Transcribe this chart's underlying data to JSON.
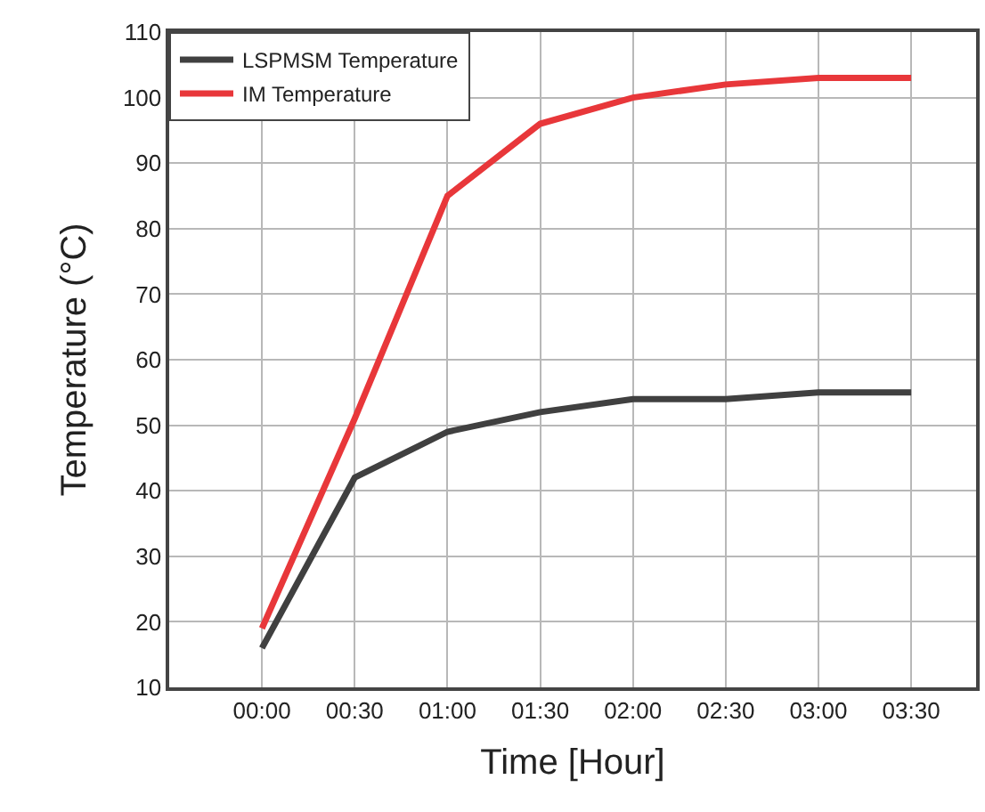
{
  "chart_data": {
    "type": "line",
    "xlabel": "Time [Hour]",
    "ylabel": "Temperature (°C)",
    "x": [
      0,
      0.5,
      1,
      1.5,
      2,
      2.5,
      3,
      3.5
    ],
    "series": [
      {
        "name": "LSPMSM Temperature",
        "color": "#404040",
        "values": [
          16,
          42,
          49,
          52,
          54,
          54,
          55,
          55
        ]
      },
      {
        "name": "IM Temperature",
        "color": "#e8373a",
        "values": [
          19,
          51,
          85,
          96,
          100,
          102,
          103,
          103
        ]
      }
    ],
    "xlim": [
      -0.5,
      3.85
    ],
    "xticks": [
      {
        "value": -0.5,
        "label": null
      },
      {
        "value": 0,
        "label": "00:00"
      },
      {
        "value": 0.5,
        "label": "00:30"
      },
      {
        "value": 1,
        "label": "01:00"
      },
      {
        "value": 1.5,
        "label": "01:30"
      },
      {
        "value": 2,
        "label": "02:00"
      },
      {
        "value": 2.5,
        "label": "02:30"
      },
      {
        "value": 3,
        "label": "03:00"
      },
      {
        "value": 3.5,
        "label": "03:30"
      }
    ],
    "ylim": [
      10,
      110
    ],
    "yticks": [
      10,
      20,
      30,
      40,
      50,
      60,
      70,
      80,
      90,
      100,
      110
    ],
    "grid": true,
    "legend": "top left",
    "marker": "none",
    "line_style": "solid"
  }
}
